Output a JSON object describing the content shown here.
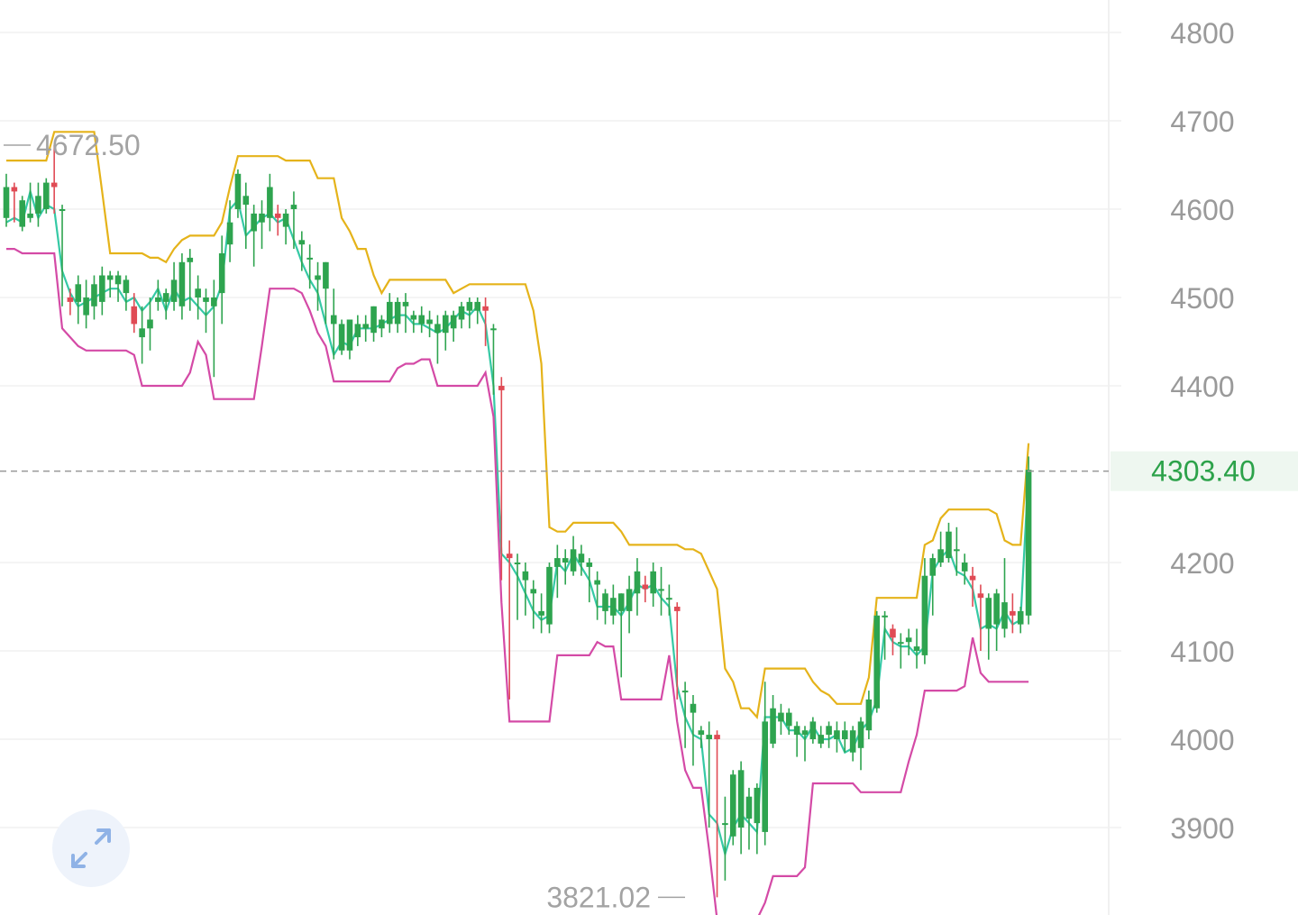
{
  "chart_data": {
    "type": "candlestick",
    "y_axis": {
      "ticks": [
        "4800",
        "4700",
        "4600",
        "4500",
        "4400",
        "4200",
        "4100",
        "4000",
        "3900"
      ],
      "range": [
        3815,
        4835
      ]
    },
    "current_price": {
      "value": 4303.4,
      "label": "4303.40"
    },
    "high_marker": {
      "value": 4672.5,
      "label": "4672.50"
    },
    "low_marker": {
      "value": 3821.02,
      "label": "3821.02"
    },
    "colors": {
      "up": "#2ea44f",
      "down": "#e04b55",
      "upper_band": "#e5b31a",
      "middle_band": "#35c9a5",
      "lower_band": "#d44aa6",
      "price_line": "#999999"
    },
    "candles": [
      [
        4590,
        4640,
        4580,
        4625,
        4585
      ],
      [
        4625,
        4630,
        4585,
        4620,
        4590
      ],
      [
        4580,
        4615,
        4575,
        4610,
        4585
      ],
      [
        4590,
        4630,
        4585,
        4595,
        4620
      ],
      [
        4595,
        4630,
        4580,
        4615,
        4590
      ],
      [
        4600,
        4635,
        4595,
        4630,
        4605
      ],
      [
        4630,
        4672.5,
        4595,
        4625,
        4600
      ],
      [
        4600,
        4605,
        4490,
        4600,
        4530
      ],
      [
        4500,
        4510,
        4480,
        4495,
        4505
      ],
      [
        4495,
        4525,
        4470,
        4515,
        4490
      ],
      [
        4480,
        4520,
        4465,
        4500,
        4495
      ],
      [
        4490,
        4525,
        4475,
        4515,
        4500
      ],
      [
        4495,
        4535,
        4480,
        4525,
        4505
      ],
      [
        4520,
        4530,
        4500,
        4525,
        4510
      ],
      [
        4515,
        4530,
        4495,
        4525,
        4510
      ],
      [
        4505,
        4525,
        4485,
        4520,
        4495
      ],
      [
        4490,
        4505,
        4460,
        4470,
        4500
      ],
      [
        4455,
        4490,
        4425,
        4465,
        4485
      ],
      [
        4465,
        4500,
        4440,
        4475,
        4495
      ],
      [
        4495,
        4520,
        4485,
        4500,
        4510
      ],
      [
        4495,
        4510,
        4475,
        4505,
        4485
      ],
      [
        4495,
        4540,
        4485,
        4520,
        4510
      ],
      [
        4490,
        4550,
        4475,
        4540,
        4495
      ],
      [
        4540,
        4555,
        4485,
        4545,
        4500
      ],
      [
        4500,
        4525,
        4475,
        4510,
        4490
      ],
      [
        4495,
        4510,
        4460,
        4500,
        4480
      ],
      [
        4490,
        4520,
        4410,
        4500,
        4490
      ],
      [
        4505,
        4570,
        4470,
        4550,
        4515
      ],
      [
        4560,
        4610,
        4540,
        4585,
        4600
      ],
      [
        4600,
        4645,
        4590,
        4640,
        4610
      ],
      [
        4605,
        4630,
        4555,
        4615,
        4570
      ],
      [
        4575,
        4605,
        4535,
        4595,
        4580
      ],
      [
        4585,
        4610,
        4555,
        4595,
        4590
      ],
      [
        4590,
        4640,
        4575,
        4625,
        4595
      ],
      [
        4595,
        4605,
        4570,
        4590,
        4585
      ],
      [
        4580,
        4600,
        4560,
        4595,
        4590
      ],
      [
        4600,
        4620,
        4555,
        4605,
        4565
      ],
      [
        4560,
        4575,
        4530,
        4565,
        4540
      ],
      [
        4545,
        4560,
        4510,
        4545,
        4520
      ],
      [
        4520,
        4540,
        4485,
        4525,
        4505
      ],
      [
        4510,
        4540,
        4470,
        4540,
        4470
      ],
      [
        4470,
        4510,
        4430,
        4480,
        4435
      ],
      [
        4440,
        4475,
        4435,
        4470,
        4450
      ],
      [
        4440,
        4475,
        4430,
        4475,
        4445
      ],
      [
        4455,
        4480,
        4445,
        4470,
        4465
      ],
      [
        4465,
        4480,
        4450,
        4470,
        4465
      ],
      [
        4460,
        4490,
        4450,
        4490,
        4465
      ],
      [
        4465,
        4480,
        4455,
        4475,
        4470
      ],
      [
        4470,
        4505,
        4460,
        4495,
        4475
      ],
      [
        4470,
        4500,
        4460,
        4495,
        4480
      ],
      [
        4490,
        4505,
        4460,
        4495,
        4480
      ],
      [
        4475,
        4485,
        4460,
        4480,
        4470
      ],
      [
        4470,
        4490,
        4460,
        4480,
        4470
      ],
      [
        4470,
        4485,
        4455,
        4475,
        4465
      ],
      [
        4460,
        4480,
        4425,
        4470,
        4460
      ],
      [
        4460,
        4485,
        4440,
        4480,
        4465
      ],
      [
        4465,
        4485,
        4450,
        4480,
        4475
      ],
      [
        4475,
        4495,
        4465,
        4490,
        4485
      ],
      [
        4485,
        4500,
        4465,
        4495,
        4480
      ],
      [
        4485,
        4500,
        4470,
        4495,
        4490
      ],
      [
        4490,
        4500,
        4445,
        4485,
        4470
      ],
      [
        4465,
        4470,
        4390,
        4465,
        4400
      ],
      [
        4400,
        4410,
        4180,
        4395,
        4210
      ],
      [
        4210,
        4225,
        4045,
        4205,
        4200
      ],
      [
        4200,
        4210,
        4135,
        4200,
        4185
      ],
      [
        4180,
        4200,
        4140,
        4190,
        4165
      ],
      [
        4165,
        4180,
        4125,
        4170,
        4145
      ],
      [
        4140,
        4165,
        4120,
        4145,
        4135
      ],
      [
        4130,
        4200,
        4120,
        4195,
        4140
      ],
      [
        4195,
        4220,
        4160,
        4205,
        4200
      ],
      [
        4200,
        4215,
        4175,
        4205,
        4190
      ],
      [
        4190,
        4230,
        4185,
        4215,
        4210
      ],
      [
        4200,
        4220,
        4185,
        4210,
        4195
      ],
      [
        4195,
        4205,
        4155,
        4200,
        4180
      ],
      [
        4175,
        4190,
        4135,
        4180,
        4150
      ],
      [
        4145,
        4170,
        4130,
        4165,
        4150
      ],
      [
        4140,
        4175,
        4130,
        4160,
        4150
      ],
      [
        4145,
        4165,
        4070,
        4165,
        4140
      ],
      [
        4145,
        4185,
        4120,
        4170,
        4155
      ],
      [
        4165,
        4205,
        4140,
        4190,
        4175
      ],
      [
        4175,
        4185,
        4155,
        4170,
        4170
      ],
      [
        4165,
        4200,
        4150,
        4190,
        4175
      ],
      [
        4170,
        4195,
        4140,
        4170,
        4160
      ],
      [
        4160,
        4175,
        4140,
        4160,
        4150
      ],
      [
        4150,
        4155,
        4045,
        4145,
        4060
      ],
      [
        4055,
        4065,
        3990,
        4055,
        4025
      ],
      [
        4030,
        4050,
        3970,
        4040,
        4005
      ],
      [
        4005,
        4015,
        3990,
        4010,
        4000
      ],
      [
        4000,
        4020,
        3900,
        4005,
        3915
      ],
      [
        4005,
        4010,
        3821.02,
        4000,
        3905
      ],
      [
        3905,
        3935,
        3840,
        3905,
        3870
      ],
      [
        3890,
        3965,
        3880,
        3960,
        3900
      ],
      [
        3900,
        3975,
        3870,
        3965,
        3915
      ],
      [
        3910,
        3945,
        3875,
        3935,
        3905
      ],
      [
        3905,
        3950,
        3870,
        3945,
        3895
      ],
      [
        3895,
        4065,
        3880,
        4020,
        4025
      ],
      [
        3995,
        4050,
        3990,
        4035,
        4025
      ],
      [
        4020,
        4040,
        4005,
        4030,
        4025
      ],
      [
        4015,
        4035,
        4005,
        4030,
        4010
      ],
      [
        4005,
        4020,
        3980,
        4015,
        4010
      ],
      [
        4005,
        4015,
        3975,
        4010,
        4000
      ],
      [
        4000,
        4025,
        3995,
        4020,
        4015
      ],
      [
        3995,
        4015,
        3990,
        4005,
        4000
      ],
      [
        4005,
        4020,
        3990,
        4015,
        4000
      ],
      [
        4000,
        4020,
        3985,
        4010,
        4005
      ],
      [
        4000,
        4020,
        3985,
        4010,
        3985
      ],
      [
        3985,
        4015,
        3975,
        4010,
        3990
      ],
      [
        3990,
        4025,
        3965,
        4020,
        4010
      ],
      [
        4010,
        4055,
        4000,
        4045,
        4020
      ],
      [
        4035,
        4145,
        4030,
        4140,
        4045
      ],
      [
        4140,
        4145,
        4090,
        4140,
        4125
      ],
      [
        4125,
        4130,
        4095,
        4115,
        4110
      ],
      [
        4110,
        4120,
        4080,
        4110,
        4105
      ],
      [
        4110,
        4125,
        4095,
        4115,
        4105
      ],
      [
        4100,
        4125,
        4080,
        4105,
        4095
      ],
      [
        4095,
        4205,
        4085,
        4185,
        4105
      ],
      [
        4185,
        4210,
        4140,
        4205,
        4190
      ],
      [
        4200,
        4235,
        4195,
        4215,
        4205
      ],
      [
        4205,
        4245,
        4200,
        4235,
        4215
      ],
      [
        4215,
        4240,
        4185,
        4215,
        4190
      ],
      [
        4190,
        4210,
        4175,
        4200,
        4185
      ],
      [
        4185,
        4195,
        4150,
        4180,
        4170
      ],
      [
        4165,
        4175,
        4100,
        4160,
        4125
      ],
      [
        4125,
        4165,
        4090,
        4160,
        4130
      ],
      [
        4130,
        4170,
        4100,
        4165,
        4125
      ],
      [
        4125,
        4205,
        4115,
        4155,
        4145
      ],
      [
        4145,
        4165,
        4120,
        4140,
        4130
      ],
      [
        4130,
        4150,
        4120,
        4145,
        4135
      ],
      [
        4140,
        4320,
        4130,
        4305,
        4303.4
      ]
    ]
  },
  "ui": {
    "expand_icon": "expand-arrows-icon"
  }
}
